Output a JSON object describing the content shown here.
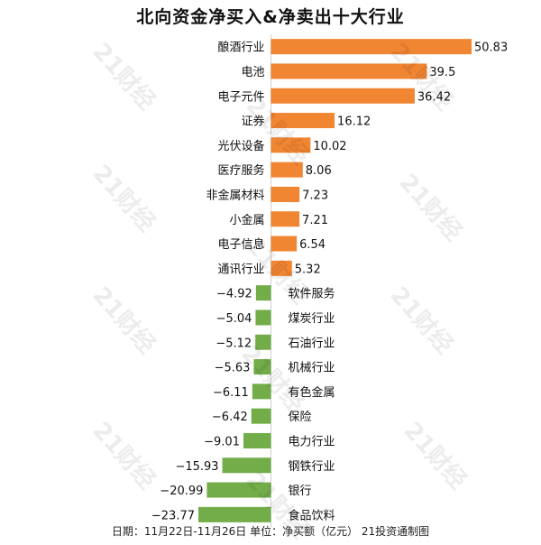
{
  "title": "北向资金净买入&净卖出十大行业",
  "footer": "日期：11月22日-11月26日 单位：净买额（亿元） 21投资通制图",
  "watermark": "21财经",
  "colors": {
    "positive": "#f08532",
    "negative": "#72ad49"
  },
  "chart_data": {
    "type": "bar",
    "orientation": "horizontal",
    "categories": [
      "酿酒行业",
      "电池",
      "电子元件",
      "证券",
      "光伏设备",
      "医疗服务",
      "非金属材料",
      "小金属",
      "电子信息",
      "通讯行业",
      "软件服务",
      "煤炭行业",
      "石油行业",
      "机械行业",
      "有色金属",
      "保险",
      "电力行业",
      "钢铁行业",
      "银行",
      "食品饮料"
    ],
    "values": [
      50.83,
      39.5,
      36.42,
      16.12,
      10.02,
      8.06,
      7.23,
      7.21,
      6.54,
      5.32,
      -4.92,
      -5.04,
      -5.12,
      -5.63,
      -6.11,
      -6.42,
      -9.01,
      -15.93,
      -20.99,
      -23.77
    ],
    "value_labels": [
      "50.83",
      "39.5",
      "36.42",
      "16.12",
      "10.02",
      "8.06",
      "7.23",
      "7.21",
      "6.54",
      "5.32",
      "−4.92",
      "−5.04",
      "−5.12",
      "−5.63",
      "−6.11",
      "−6.42",
      "−9.01",
      "−15.93",
      "−20.99",
      "−23.77"
    ],
    "xlim": [
      -23.77,
      50.83
    ],
    "grid": false,
    "legend": "none"
  }
}
